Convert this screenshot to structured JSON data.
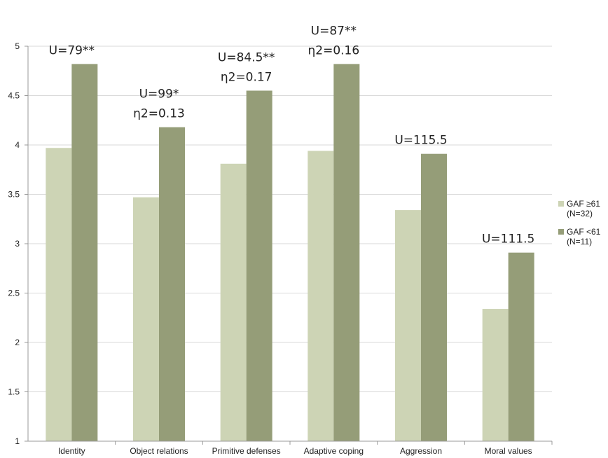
{
  "chart_data": {
    "type": "bar",
    "categories": [
      "Identity",
      "Object relations",
      "Primitive defenses",
      "Adaptive coping",
      "Aggression",
      "Moral values"
    ],
    "series": [
      {
        "name": "GAF ≥61 (N=32)",
        "legend_lines": [
          "GAF ≥61",
          "(N=32)"
        ],
        "color": "#cdd4b5",
        "values": [
          3.97,
          3.47,
          3.81,
          3.94,
          3.34,
          2.34
        ]
      },
      {
        "name": "GAF <61 (N=11)",
        "legend_lines": [
          "GAF <61",
          "(N=11)"
        ],
        "color": "#959d78",
        "values": [
          4.82,
          4.18,
          4.55,
          4.82,
          3.91,
          2.91
        ]
      }
    ],
    "annotations": [
      [
        "U=79**"
      ],
      [
        "U=99*",
        "η2=0.13"
      ],
      [
        "U=84.5**",
        "η2=0.17"
      ],
      [
        "U=87**",
        "η2=0.16"
      ],
      [
        "U=115.5"
      ],
      [
        "U=111.5"
      ]
    ],
    "yticks": [
      "1",
      "1.5",
      "2",
      "2.5",
      "3",
      "3.5",
      "4",
      "4.5",
      "5"
    ],
    "ylim": [
      1,
      5
    ],
    "grid": true,
    "gridColor": "#d9d9d9",
    "legend": "right"
  }
}
